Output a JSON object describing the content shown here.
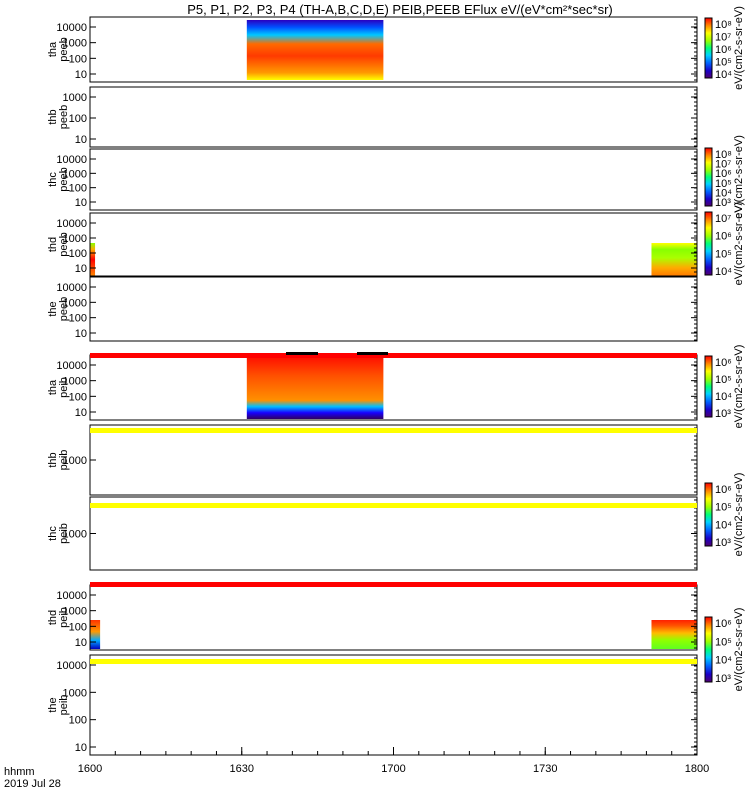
{
  "chart_data": {
    "type": "heatmap",
    "title": "P5, P1, P2, P3, P4 (TH-A,B,C,D,E) PEIB,PEEB EFlux eV/(eV*cm²*sec*sr)",
    "x_tick_labels": [
      "1600",
      "1630",
      "1700",
      "1730",
      "1800"
    ],
    "xlim": [
      "16:00",
      "18:00"
    ],
    "xlabel": "hhmm",
    "date_label": "2019 Jul 28",
    "yscale": "log",
    "colorbar_label": "eV/(cm2-s-sr-eV)",
    "panels": [
      {
        "probe": "tha",
        "product": "peeb",
        "label": [
          "tha",
          "peeb"
        ],
        "yticks": [
          "10000",
          "1000",
          "100",
          "10"
        ],
        "colorbar": [
          "10⁸",
          "10⁷",
          "10⁶",
          "10⁵",
          "10⁴"
        ],
        "data_intervals": [
          {
            "start": "16:31",
            "end": "16:58"
          }
        ]
      },
      {
        "probe": "thb",
        "product": "peeb",
        "label": [
          "thb",
          "peeb"
        ],
        "yticks": [
          "1000",
          "100",
          "10"
        ],
        "data_intervals": []
      },
      {
        "probe": "thc",
        "product": "peeb",
        "label": [
          "thc",
          "peeb"
        ],
        "yticks": [
          "10000",
          "1000",
          "100",
          "10"
        ],
        "colorbar": [
          "10⁸",
          "10⁷",
          "10⁶",
          "10⁵",
          "10⁴",
          "10³"
        ],
        "data_intervals": []
      },
      {
        "probe": "thd",
        "product": "peeb",
        "label": [
          "thd",
          "peeb"
        ],
        "yticks": [
          "10000",
          "1000",
          "100",
          "10"
        ],
        "colorbar": [
          "10⁷",
          "10⁶",
          "10⁵",
          "10⁴"
        ],
        "data_intervals": [
          {
            "start": "16:00",
            "end": "16:01"
          },
          {
            "start": "17:51",
            "end": "18:00"
          }
        ]
      },
      {
        "probe": "the",
        "product": "peeb",
        "label": [
          "the",
          "peeb"
        ],
        "yticks": [
          "10000",
          "1000",
          "100",
          "10"
        ],
        "data_intervals": []
      },
      {
        "probe": "tha",
        "product": "peib",
        "label": [
          "tha",
          "peib"
        ],
        "yticks": [
          "10000",
          "1000",
          "100",
          "10"
        ],
        "colorbar": [
          "10⁶",
          "10⁵",
          "10⁴",
          "10³"
        ],
        "data_intervals": [
          {
            "start": "16:31",
            "end": "16:58"
          }
        ]
      },
      {
        "probe": "thb",
        "product": "peib",
        "label": [
          "thb",
          "peib"
        ],
        "yticks": [
          "1000"
        ],
        "data_intervals": []
      },
      {
        "probe": "thc",
        "product": "peib",
        "label": [
          "thc",
          "peib"
        ],
        "yticks": [
          "1000"
        ],
        "colorbar": [
          "10⁶",
          "10⁵",
          "10⁴",
          "10³"
        ],
        "data_intervals": []
      },
      {
        "probe": "thd",
        "product": "peib",
        "label": [
          "thd",
          "peib"
        ],
        "yticks": [
          "10000",
          "1000",
          "100",
          "10"
        ],
        "colorbar": [
          "10⁶",
          "10⁵",
          "10⁴",
          "10³"
        ],
        "data_intervals": [
          {
            "start": "16:00",
            "end": "16:02"
          },
          {
            "start": "17:51",
            "end": "18:00"
          }
        ]
      },
      {
        "probe": "the",
        "product": "peib",
        "label": [
          "the",
          "peib"
        ],
        "yticks": [
          "10000",
          "1000",
          "100",
          "10"
        ],
        "data_intervals": []
      }
    ]
  },
  "colors": {
    "red_bar": "#ff0000",
    "yellow_bar": "#ffff00",
    "black": "#000000"
  }
}
